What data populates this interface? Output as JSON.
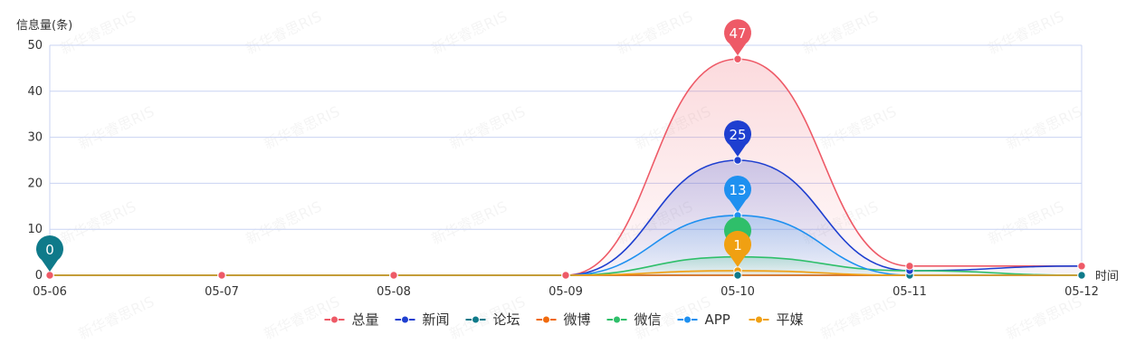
{
  "chart_data": {
    "type": "area",
    "ylabel": "信息量(条)",
    "xlabel": "时间",
    "ylim": [
      0,
      50
    ],
    "yticks": [
      0,
      10,
      20,
      30,
      40,
      50
    ],
    "categories": [
      "05-06",
      "05-07",
      "05-08",
      "05-09",
      "05-10",
      "05-11",
      "05-12"
    ],
    "grid": true,
    "legend_position": "bottom",
    "series": [
      {
        "name": "总量",
        "color": "#ee5a67",
        "values": [
          0,
          0,
          0,
          0,
          47,
          2,
          2
        ],
        "markers": [
          {
            "index": 4,
            "label": "47"
          }
        ]
      },
      {
        "name": "新闻",
        "color": "#1e3fd0",
        "values": [
          0,
          0,
          0,
          0,
          25,
          1,
          2
        ],
        "markers": [
          {
            "index": 4,
            "label": "25"
          }
        ]
      },
      {
        "name": "论坛",
        "color": "#0f7a8a",
        "values": [
          0,
          0,
          0,
          0,
          0,
          0,
          0
        ],
        "markers": [
          {
            "index": 0,
            "label": "0"
          }
        ]
      },
      {
        "name": "微博",
        "color": "#f06a0d",
        "values": [
          0,
          0,
          0,
          0,
          0,
          0,
          0
        ],
        "markers": []
      },
      {
        "name": "微信",
        "color": "#2fbf6a",
        "values": [
          0,
          0,
          0,
          0,
          4,
          1,
          0
        ],
        "markers": [
          {
            "index": 4,
            "label": ""
          }
        ]
      },
      {
        "name": "APP",
        "color": "#1e90f0",
        "values": [
          0,
          0,
          0,
          0,
          13,
          0,
          0
        ],
        "markers": [
          {
            "index": 4,
            "label": "13"
          }
        ]
      },
      {
        "name": "平媒",
        "color": "#f0a012",
        "values": [
          0,
          0,
          0,
          0,
          1,
          0,
          0
        ],
        "markers": [
          {
            "index": 4,
            "label": "1"
          }
        ]
      }
    ]
  },
  "watermark": {
    "text": "新华睿思RIS"
  }
}
